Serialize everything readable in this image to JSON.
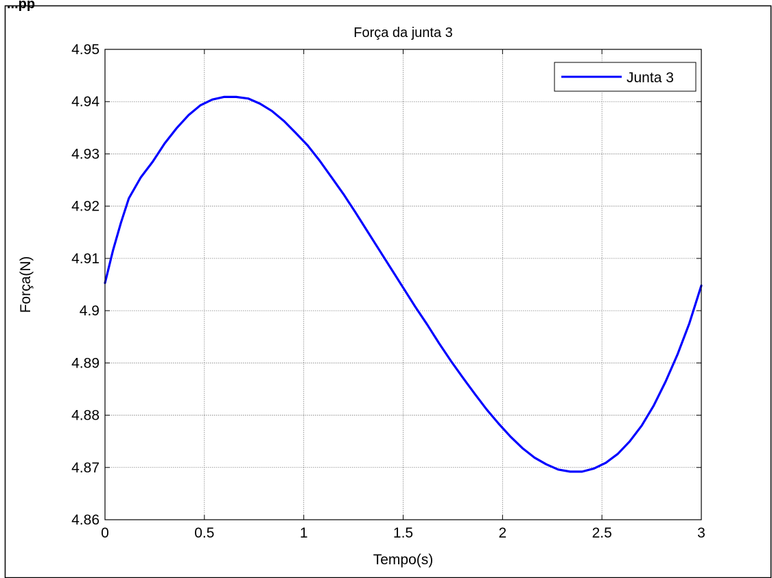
{
  "header_fragment": "...pp",
  "chart_data": {
    "type": "line",
    "title": "Força da junta 3",
    "xlabel": "Tempo(s)",
    "ylabel": "Força(N)",
    "xlim": [
      0,
      3
    ],
    "ylim": [
      4.86,
      4.95
    ],
    "xticks": [
      0,
      0.5,
      1,
      1.5,
      2,
      2.5,
      3
    ],
    "xtick_labels": [
      "0",
      "0.5",
      "1",
      "1.5",
      "2",
      "2.5",
      "3"
    ],
    "yticks": [
      4.86,
      4.87,
      4.88,
      4.89,
      4.9,
      4.91,
      4.92,
      4.93,
      4.94,
      4.95
    ],
    "ytick_labels": [
      "4.86",
      "4.87",
      "4.88",
      "4.89",
      "4.9",
      "4.91",
      "4.92",
      "4.93",
      "4.94",
      "4.95"
    ],
    "grid": true,
    "legend_position": "top-right",
    "series": [
      {
        "name": "Junta 3",
        "color": "#0000ff",
        "x": [
          0,
          0.04,
          0.08,
          0.12,
          0.18,
          0.24,
          0.3,
          0.36,
          0.42,
          0.48,
          0.54,
          0.6,
          0.66,
          0.72,
          0.78,
          0.84,
          0.9,
          0.96,
          1.02,
          1.08,
          1.14,
          1.2,
          1.26,
          1.32,
          1.38,
          1.44,
          1.5,
          1.56,
          1.62,
          1.68,
          1.74,
          1.8,
          1.86,
          1.92,
          1.98,
          2.04,
          2.1,
          2.16,
          2.22,
          2.28,
          2.34,
          2.4,
          2.46,
          2.52,
          2.58,
          2.64,
          2.7,
          2.76,
          2.82,
          2.88,
          2.94,
          3.0
        ],
        "values": [
          4.9053,
          4.9115,
          4.9168,
          4.9215,
          4.9255,
          4.9285,
          4.932,
          4.9349,
          4.9374,
          4.9393,
          4.9404,
          4.9409,
          4.9409,
          4.9406,
          4.9396,
          4.9382,
          4.9363,
          4.934,
          4.9316,
          4.9287,
          4.9255,
          4.9223,
          4.9188,
          4.9152,
          4.9116,
          4.908,
          4.9044,
          4.9008,
          4.8974,
          4.8938,
          4.8904,
          4.8872,
          4.8841,
          4.8811,
          4.8784,
          4.8759,
          4.8737,
          4.8719,
          4.8706,
          4.8696,
          4.8692,
          4.8692,
          4.8698,
          4.8709,
          4.8726,
          4.875,
          4.878,
          4.8818,
          4.8864,
          4.8916,
          4.8976,
          4.9048
        ]
      }
    ]
  }
}
